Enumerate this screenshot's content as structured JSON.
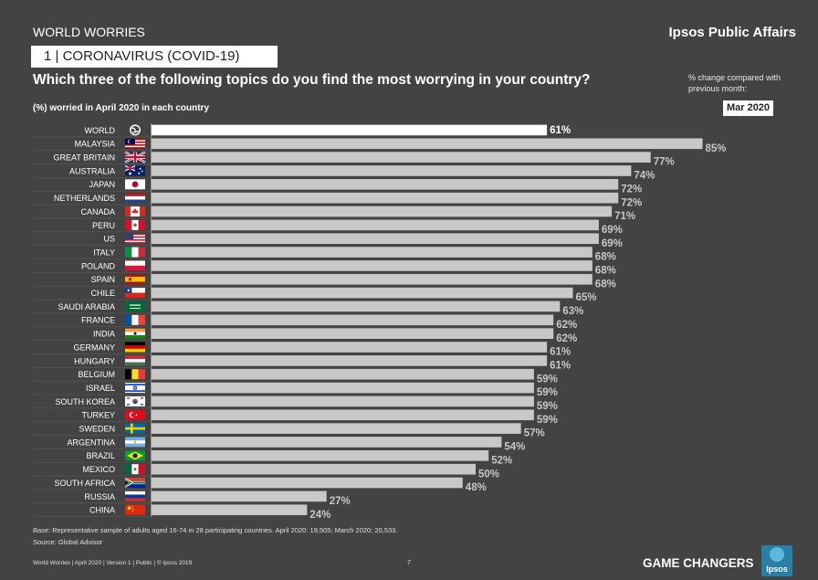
{
  "header": {
    "doc_label": "WORLD WORRIES",
    "brand": "Ipsos Public Affairs",
    "topic": "1  | CORONAVIRUS (COVID-19)",
    "question": "Which three of the following topics do you find the most worrying in your country?",
    "change_note": "% change compared with previous month:",
    "subtitle": "(%) worried in April 2020 in each country",
    "month_badge": "Mar 2020"
  },
  "chart_data": {
    "type": "bar",
    "orientation": "horizontal",
    "title": "Which three of the following topics do you find the most worrying in your country?",
    "subtitle": "(%) worried in April 2020 in each country",
    "xlim": [
      0,
      100
    ],
    "categories": [
      "WORLD",
      "MALAYSIA",
      "GREAT BRITAIN",
      "AUSTRALIA",
      "JAPAN",
      "NETHERLANDS",
      "CANADA",
      "PERU",
      "US",
      "ITALY",
      "POLAND",
      "SPAIN",
      "CHILE",
      "SAUDI ARABIA",
      "FRANCE",
      "INDIA",
      "GERMANY",
      "HUNGARY",
      "BELGIUM",
      "ISRAEL",
      "SOUTH KOREA",
      "TURKEY",
      "SWEDEN",
      "ARGENTINA",
      "BRAZIL",
      "MEXICO",
      "SOUTH AFRICA",
      "RUSSIA",
      "CHINA"
    ],
    "values": [
      61,
      85,
      77,
      74,
      72,
      72,
      71,
      69,
      69,
      68,
      68,
      68,
      65,
      63,
      62,
      62,
      61,
      61,
      59,
      59,
      59,
      59,
      57,
      54,
      52,
      50,
      48,
      27,
      24
    ],
    "labels": [
      "61%",
      "85%",
      "77%",
      "74%",
      "72%",
      "72%",
      "71%",
      "69%",
      "69%",
      "68%",
      "68%",
      "68%",
      "65%",
      "63%",
      "62%",
      "62%",
      "61%",
      "61%",
      "59%",
      "59%",
      "59%",
      "59%",
      "57%",
      "54%",
      "52%",
      "50%",
      "48%",
      "27%",
      "24%"
    ],
    "flags": [
      "globe",
      "malaysia",
      "uk",
      "australia",
      "japan",
      "netherlands",
      "canada",
      "peru",
      "us",
      "italy",
      "poland",
      "spain",
      "chile",
      "saudi",
      "france",
      "india",
      "germany",
      "hungary",
      "belgium",
      "israel",
      "korea",
      "turkey",
      "sweden",
      "argentina",
      "brazil",
      "mexico",
      "southafrica",
      "russia",
      "china"
    ],
    "colors": {
      "world_bar": "#ffffff",
      "bar": "#c8c8c8",
      "value_world": "#ffffff",
      "value": "#c8c8c8"
    }
  },
  "footer": {
    "base_note": "Base: Representative sample of adults aged 16-74 in 28 participating countries. April 2020: 19,505; March 2020: 20,533.",
    "source_note": "Source: Global Advisor",
    "left": "World Worries | April 2020 | Version 1 | Public | © Ipsos 2019",
    "page": "7",
    "tagline": "GAME CHANGERS",
    "logo": "Ipsos"
  }
}
